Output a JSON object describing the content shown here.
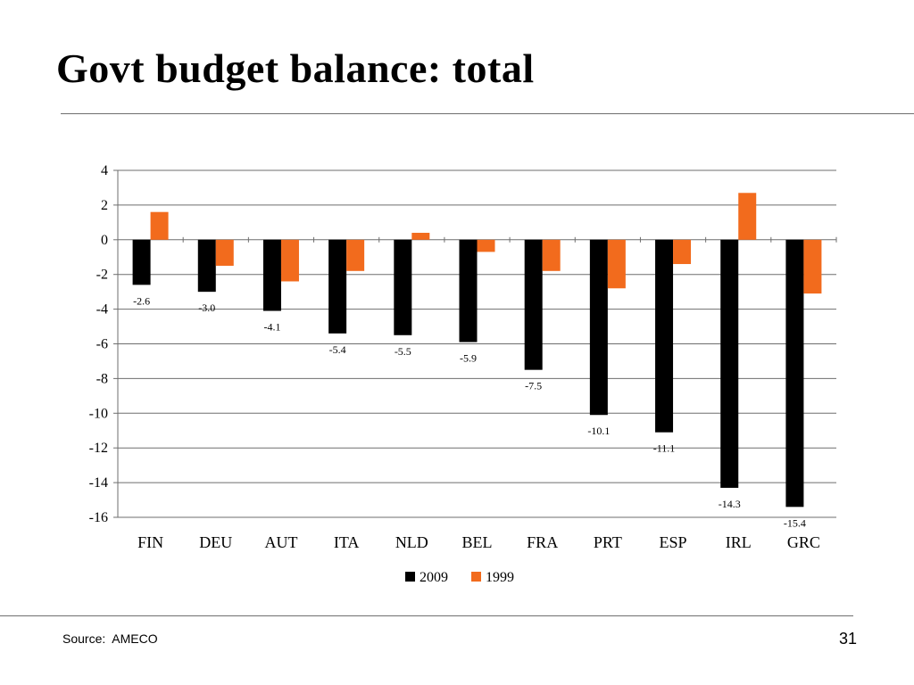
{
  "slide": {
    "title": "Govt budget balance: total",
    "source": "Source:  AMECO",
    "page_number": "31"
  },
  "chart_data": {
    "type": "bar",
    "categories": [
      "FIN",
      "DEU",
      "AUT",
      "ITA",
      "NLD",
      "BEL",
      "FRA",
      "PRT",
      "ESP",
      "IRL",
      "GRC"
    ],
    "series": [
      {
        "name": "2009",
        "color": "#000000",
        "values": [
          -2.6,
          -3.0,
          -4.1,
          -5.4,
          -5.5,
          -5.9,
          -7.5,
          -10.1,
          -11.1,
          -14.3,
          -15.4
        ],
        "data_labels": [
          "-2.6",
          "-3.0",
          "-4.1",
          "-5.4",
          "-5.5",
          "-5.9",
          "-7.5",
          "-10.1",
          "-11.1",
          "-14.3",
          "-15.4"
        ]
      },
      {
        "name": "1999",
        "color": "#f26b1d",
        "values": [
          1.6,
          -1.5,
          -2.4,
          -1.8,
          0.4,
          -0.7,
          -1.8,
          -2.8,
          -1.4,
          2.7,
          -3.1
        ]
      }
    ],
    "ylim": [
      -16,
      4
    ],
    "yticks": [
      "4",
      "2",
      "0",
      "-2",
      "-4",
      "-6",
      "-8",
      "-10",
      "-12",
      "-14",
      "-16"
    ],
    "grid": true,
    "legend": "bottom-center"
  }
}
